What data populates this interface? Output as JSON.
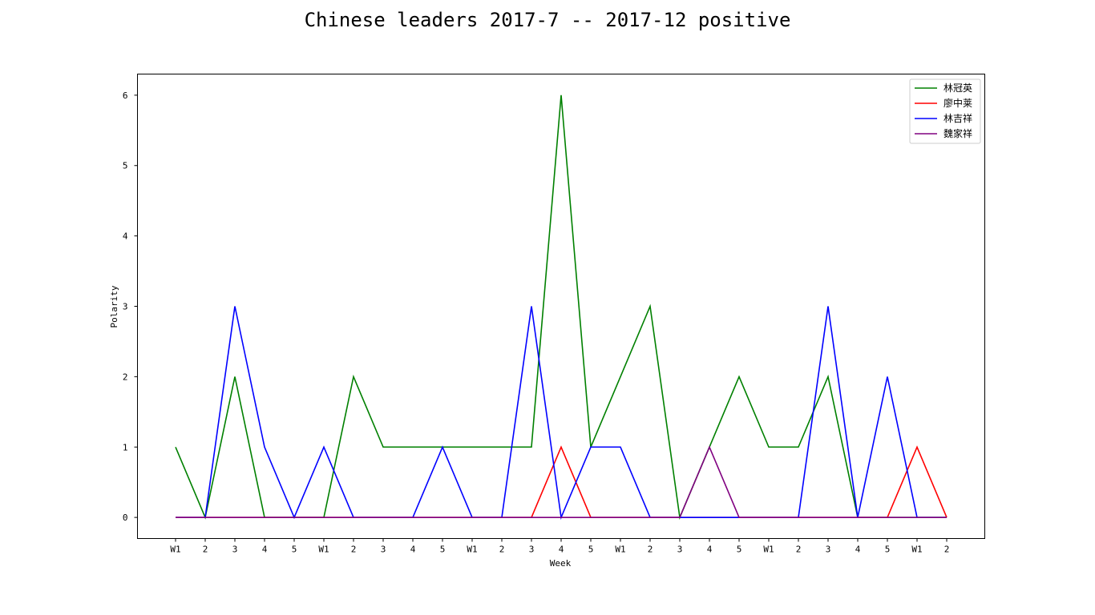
{
  "chart_data": {
    "type": "line",
    "title": "Chinese leaders 2017-7 -- 2017-12 positive",
    "xlabel": "Week",
    "ylabel": "Polarity",
    "categories": [
      "W1",
      "2",
      "3",
      "4",
      "5",
      "W1",
      "2",
      "3",
      "4",
      "5",
      "W1",
      "2",
      "3",
      "4",
      "5",
      "W1",
      "2",
      "3",
      "4",
      "5",
      "W1",
      "2",
      "3",
      "4",
      "5",
      "W1",
      "2"
    ],
    "ylim": [
      -0.3,
      6.3
    ],
    "yticks": [
      0,
      1,
      2,
      3,
      4,
      5,
      6
    ],
    "grid": false,
    "legend_position": "top-right",
    "series": [
      {
        "name": "林冠英",
        "color": "#008000",
        "values": [
          1,
          0,
          2,
          0,
          0,
          0,
          2,
          1,
          1,
          1,
          1,
          1,
          1,
          6,
          1,
          2,
          3,
          0,
          1,
          2,
          1,
          1,
          2,
          0,
          0,
          0,
          0
        ]
      },
      {
        "name": "廖中莱",
        "color": "#ff0000",
        "values": [
          0,
          0,
          0,
          0,
          0,
          0,
          0,
          0,
          0,
          0,
          0,
          0,
          0,
          1,
          0,
          0,
          0,
          0,
          0,
          0,
          0,
          0,
          0,
          0,
          0,
          1,
          0
        ]
      },
      {
        "name": "林吉祥",
        "color": "#0000ff",
        "values": [
          0,
          0,
          3,
          1,
          0,
          1,
          0,
          0,
          0,
          1,
          0,
          0,
          3,
          0,
          1,
          1,
          0,
          0,
          0,
          0,
          0,
          0,
          3,
          0,
          2,
          0,
          0
        ]
      },
      {
        "name": "魏家祥",
        "color": "#800080",
        "values": [
          0,
          0,
          0,
          0,
          0,
          0,
          0,
          0,
          0,
          0,
          0,
          0,
          0,
          0,
          0,
          0,
          0,
          0,
          1,
          0,
          0,
          0,
          0,
          0,
          0,
          0,
          0
        ]
      }
    ]
  }
}
